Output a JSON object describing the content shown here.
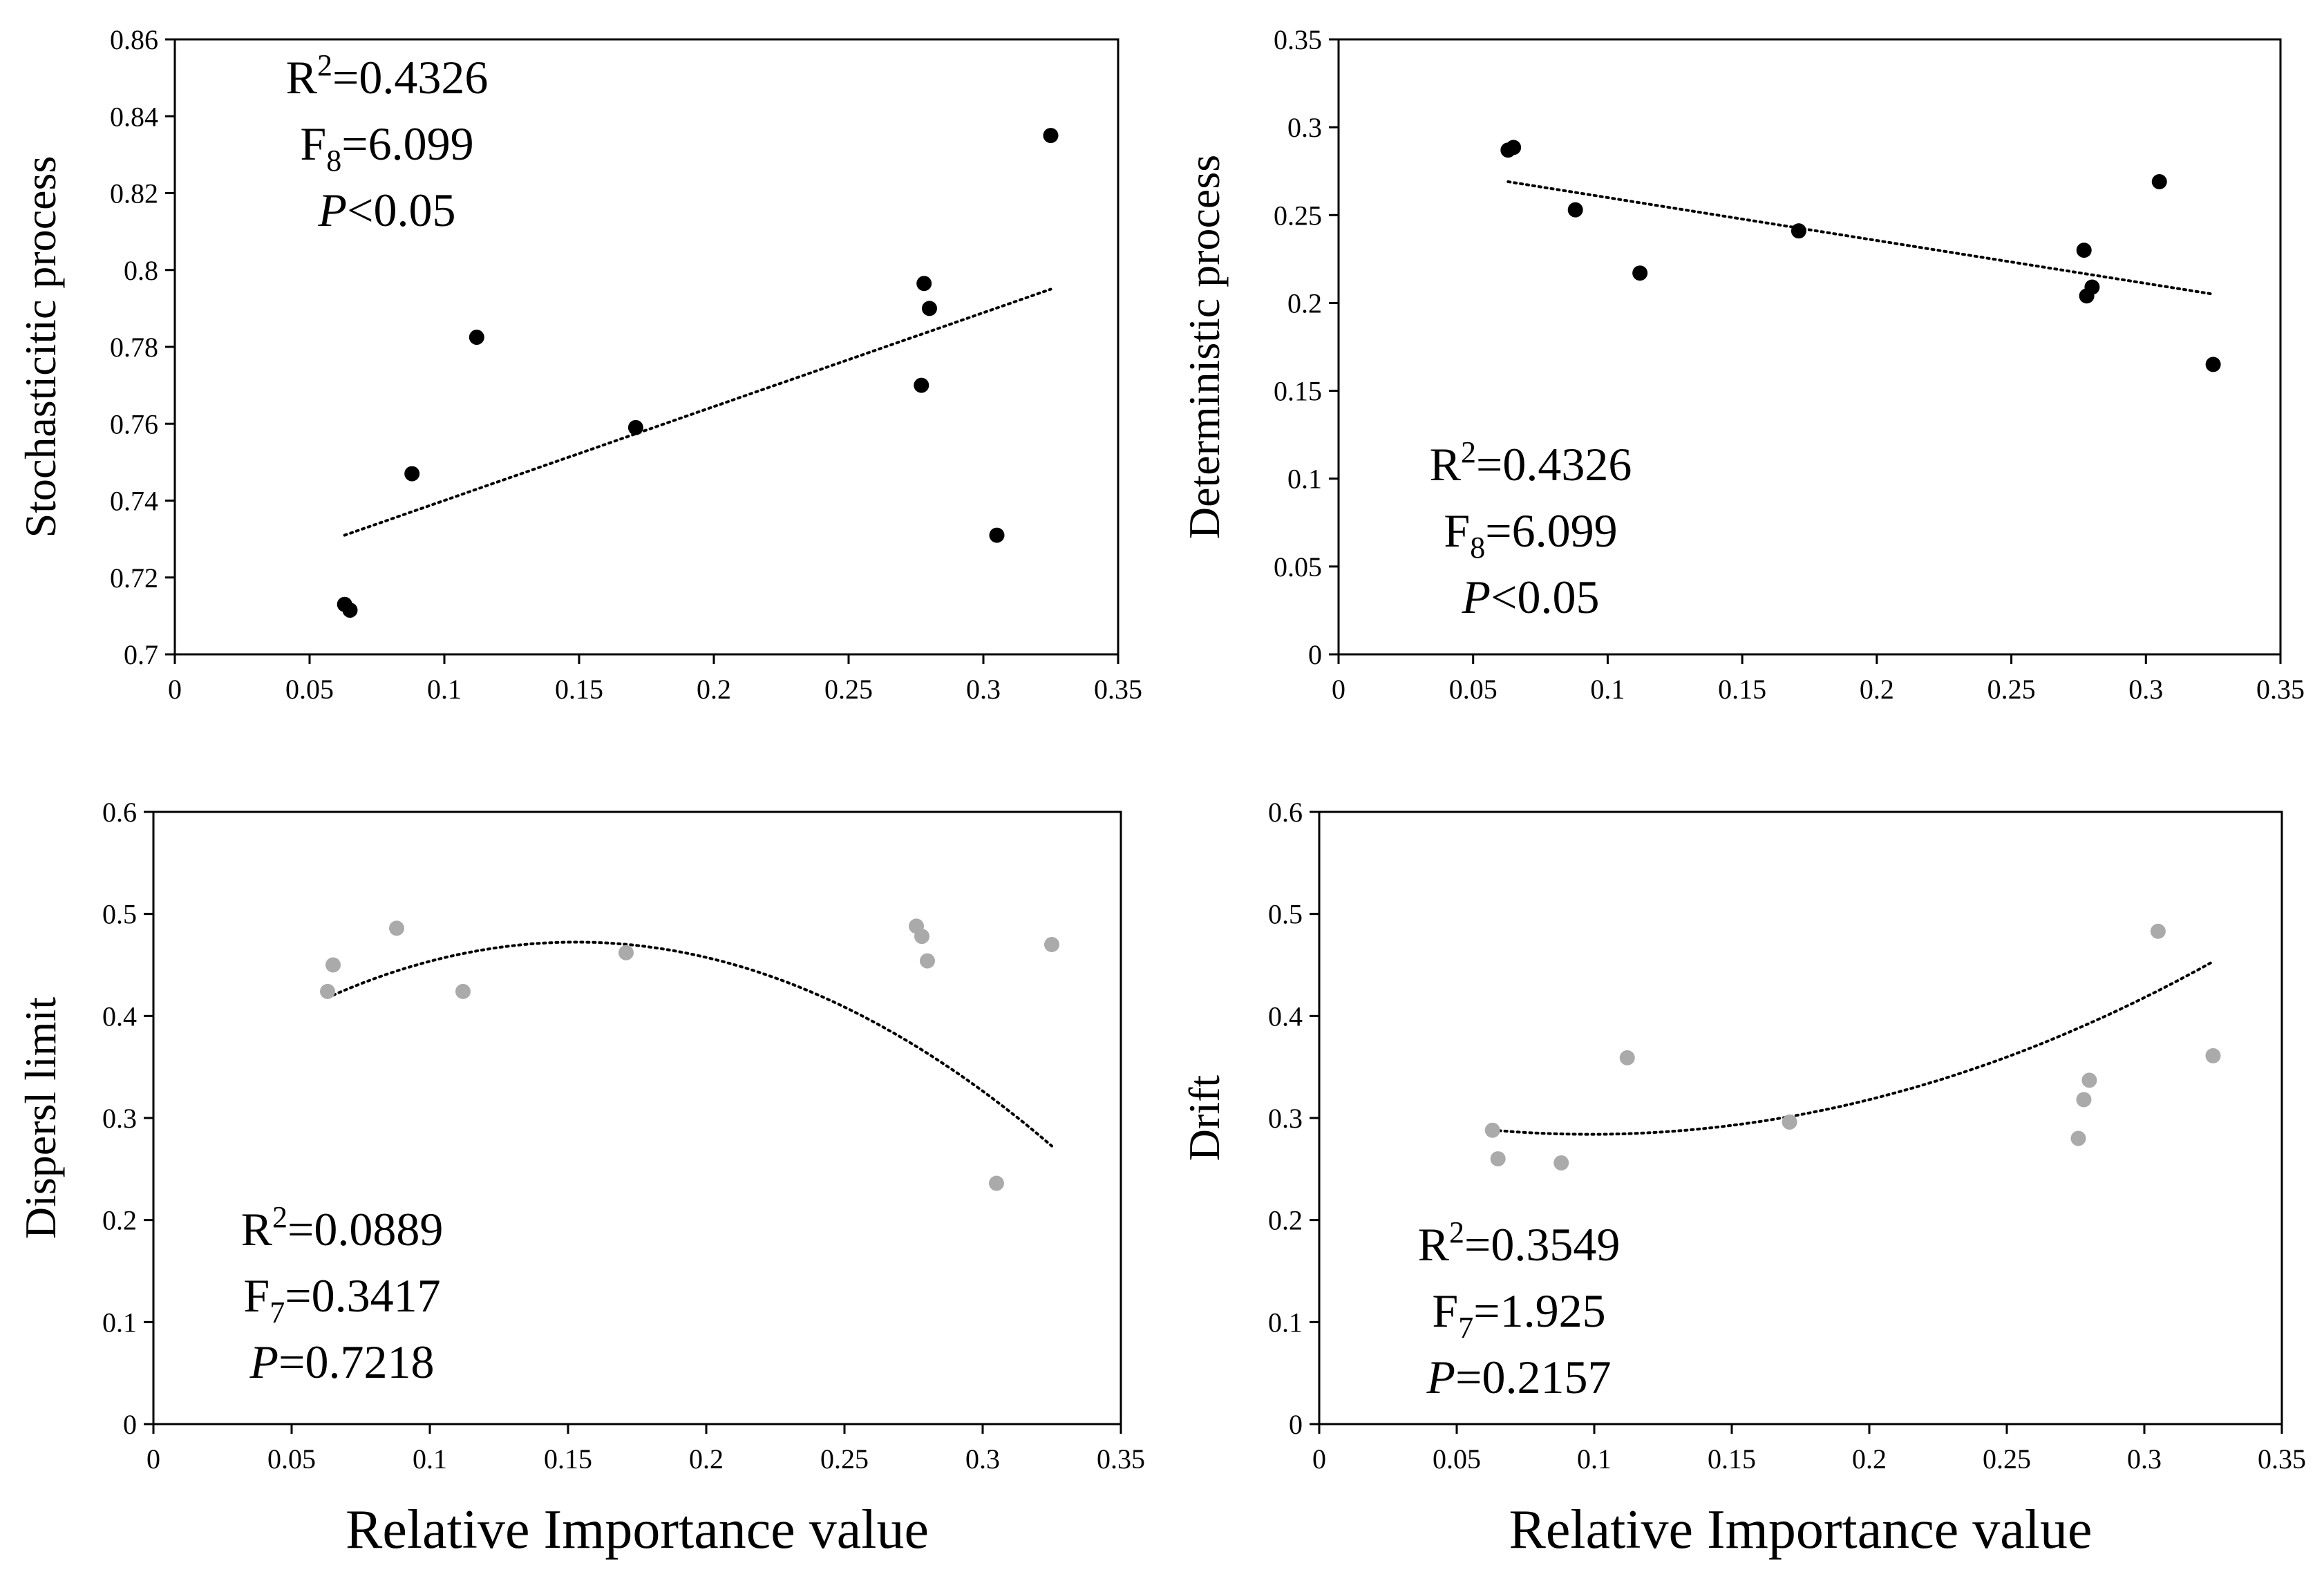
{
  "chart_data": [
    {
      "type": "scatter",
      "ylabel": "Stochasticitic process",
      "xlabel": "",
      "xlim": [
        0,
        0.35
      ],
      "ylim": [
        0.7,
        0.86
      ],
      "xticks": [
        "0",
        "0.05",
        "0.1",
        "0.15",
        "0.2",
        "0.25",
        "0.3",
        "0.35"
      ],
      "yticks": [
        "0.7",
        "0.72",
        "0.74",
        "0.76",
        "0.78",
        "0.8",
        "0.82",
        "0.84",
        "0.86"
      ],
      "marker_color": "#000000",
      "points": {
        "x": [
          0.063,
          0.065,
          0.088,
          0.112,
          0.171,
          0.277,
          0.278,
          0.28,
          0.305,
          0.325
        ],
        "y": [
          0.713,
          0.7115,
          0.747,
          0.7825,
          0.759,
          0.77,
          0.7965,
          0.79,
          0.731,
          0.835
        ]
      },
      "fit": {
        "kind": "linear",
        "x": [
          0.063,
          0.325
        ],
        "y": [
          0.731,
          0.795
        ]
      },
      "stats": {
        "r2_label": "R",
        "r2_sup": "2",
        "r2_value": "=0.4326",
        "f_label": "F",
        "f_sub": "8",
        "f_value": "=6.099",
        "p_label": "P",
        "p_value": "<0.05"
      }
    },
    {
      "type": "scatter",
      "ylabel": "Deterministic process",
      "xlabel": "",
      "xlim": [
        0,
        0.35
      ],
      "ylim": [
        0,
        0.35
      ],
      "xticks": [
        "0",
        "0.05",
        "0.1",
        "0.15",
        "0.2",
        "0.25",
        "0.3",
        "0.35"
      ],
      "yticks": [
        "0",
        "0.05",
        "0.1",
        "0.15",
        "0.2",
        "0.25",
        "0.3",
        "0.35"
      ],
      "marker_color": "#000000",
      "points": {
        "x": [
          0.063,
          0.065,
          0.088,
          0.112,
          0.171,
          0.277,
          0.278,
          0.28,
          0.305,
          0.325
        ],
        "y": [
          0.287,
          0.2885,
          0.253,
          0.217,
          0.241,
          0.23,
          0.204,
          0.209,
          0.269,
          0.165
        ]
      },
      "fit": {
        "kind": "linear",
        "x": [
          0.063,
          0.325
        ],
        "y": [
          0.269,
          0.205
        ]
      },
      "stats": {
        "r2_label": "R",
        "r2_sup": "2",
        "r2_value": "=0.4326",
        "f_label": "F",
        "f_sub": "8",
        "f_value": "=6.099",
        "p_label": "P",
        "p_value": "<0.05"
      }
    },
    {
      "type": "scatter",
      "ylabel": "Dispersl limit",
      "xlabel": "Relative Importance value",
      "xlim": [
        0,
        0.35
      ],
      "ylim": [
        0,
        0.6
      ],
      "xticks": [
        "0",
        "0.05",
        "0.1",
        "0.15",
        "0.2",
        "0.25",
        "0.3",
        "0.35"
      ],
      "yticks": [
        "0",
        "0.1",
        "0.2",
        "0.3",
        "0.4",
        "0.5",
        "0.6"
      ],
      "marker_color": "#aaaaaa",
      "points": {
        "x": [
          0.063,
          0.065,
          0.088,
          0.112,
          0.171,
          0.276,
          0.278,
          0.28,
          0.305,
          0.325
        ],
        "y": [
          0.424,
          0.45,
          0.486,
          0.424,
          0.462,
          0.488,
          0.478,
          0.454,
          0.236,
          0.47
        ]
      },
      "fit": {
        "kind": "quadratic",
        "a": -6.74,
        "b": 2.06,
        "c": 0.315,
        "x_range": [
          0.063,
          0.325
        ]
      },
      "stats": {
        "r2_label": "R",
        "r2_sup": "2",
        "r2_value": "=0.0889",
        "f_label": "F",
        "f_sub": "7",
        "f_value": "=0.3417",
        "p_label": "P",
        "p_value": "=0.7218"
      }
    },
    {
      "type": "scatter",
      "ylabel": "Drift",
      "xlabel": "Relative Importance value",
      "xlim": [
        0,
        0.35
      ],
      "ylim": [
        0,
        0.6
      ],
      "xticks": [
        "0",
        "0.05",
        "0.1",
        "0.15",
        "0.2",
        "0.25",
        "0.3",
        "0.35"
      ],
      "yticks": [
        "0",
        "0.1",
        "0.2",
        "0.3",
        "0.4",
        "0.5",
        "0.6"
      ],
      "marker_color": "#aaaaaa",
      "points": {
        "x": [
          0.063,
          0.065,
          0.088,
          0.112,
          0.171,
          0.276,
          0.278,
          0.28,
          0.305,
          0.325
        ],
        "y": [
          0.288,
          0.26,
          0.256,
          0.359,
          0.296,
          0.28,
          0.318,
          0.337,
          0.483,
          0.361
        ]
      },
      "fit": {
        "kind": "quadratic",
        "a": 3.3,
        "b": -0.65,
        "c": 0.316,
        "x_range": [
          0.063,
          0.325
        ]
      },
      "stats": {
        "r2_label": "R",
        "r2_sup": "2",
        "r2_value": "=0.3549",
        "f_label": "F",
        "f_sub": "7",
        "f_value": "=1.925",
        "p_label": "P",
        "p_value": "=0.2157"
      }
    }
  ]
}
